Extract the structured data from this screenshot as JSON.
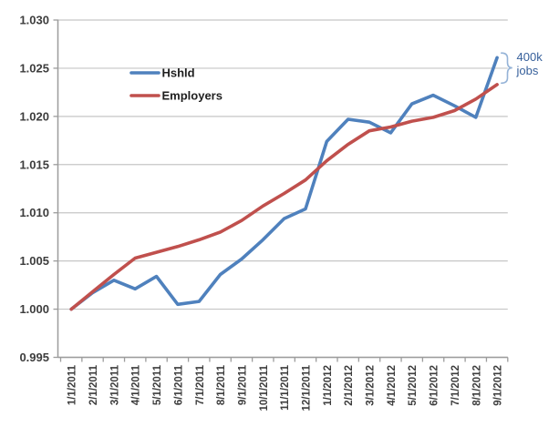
{
  "chart_data": {
    "type": "line",
    "title": "",
    "categories": [
      "1/1/2011",
      "2/1/2011",
      "3/1/2011",
      "4/1/2011",
      "5/1/2011",
      "6/1/2011",
      "7/1/2011",
      "8/1/2011",
      "9/1/2011",
      "10/1/2011",
      "11/1/2011",
      "12/1/2011",
      "1/1/2012",
      "2/1/2012",
      "3/1/2012",
      "4/1/2012",
      "5/1/2012",
      "6/1/2012",
      "7/1/2012",
      "8/1/2012",
      "9/1/2012"
    ],
    "series": [
      {
        "name": "Hshld",
        "color": "#4F81BD",
        "values": [
          1.0,
          1.0017,
          1.003,
          1.0021,
          1.0034,
          1.0005,
          1.0008,
          1.0036,
          1.0052,
          1.0072,
          1.0094,
          1.0104,
          1.0174,
          1.0197,
          1.0194,
          1.0183,
          1.0213,
          1.0222,
          1.0211,
          1.0199,
          1.0261
        ]
      },
      {
        "name": "Employers",
        "color": "#C0504D",
        "values": [
          1.0,
          1.0018,
          1.0036,
          1.0053,
          1.0059,
          1.0065,
          1.0072,
          1.008,
          1.0092,
          1.0107,
          1.012,
          1.0134,
          1.0154,
          1.0171,
          1.0185,
          1.0189,
          1.0195,
          1.0199,
          1.0206,
          1.0218,
          1.0233
        ]
      }
    ],
    "ylim": [
      0.995,
      1.03
    ],
    "y_ticks": [
      "0.995",
      "1.000",
      "1.005",
      "1.010",
      "1.015",
      "1.020",
      "1.025",
      "1.030"
    ],
    "y_tick_values": [
      0.995,
      1.0,
      1.005,
      1.01,
      1.015,
      1.02,
      1.025,
      1.03
    ],
    "grid": true,
    "legend_position": "inside-top-left",
    "legend": [
      {
        "label": "Hshld",
        "color": "#4F81BD"
      },
      {
        "label": "Employers",
        "color": "#C0504D"
      }
    ],
    "annotation": {
      "line1": "400k",
      "line2": "jobs",
      "text_color": "#37609B",
      "brace_color": "#95B3D7"
    },
    "colors": {
      "grid": "#C6C6C6",
      "axis": "#9C9C9C",
      "tick": "#9C9C9C",
      "label": "#3D3D3D",
      "background": "#FFFFFF"
    }
  }
}
